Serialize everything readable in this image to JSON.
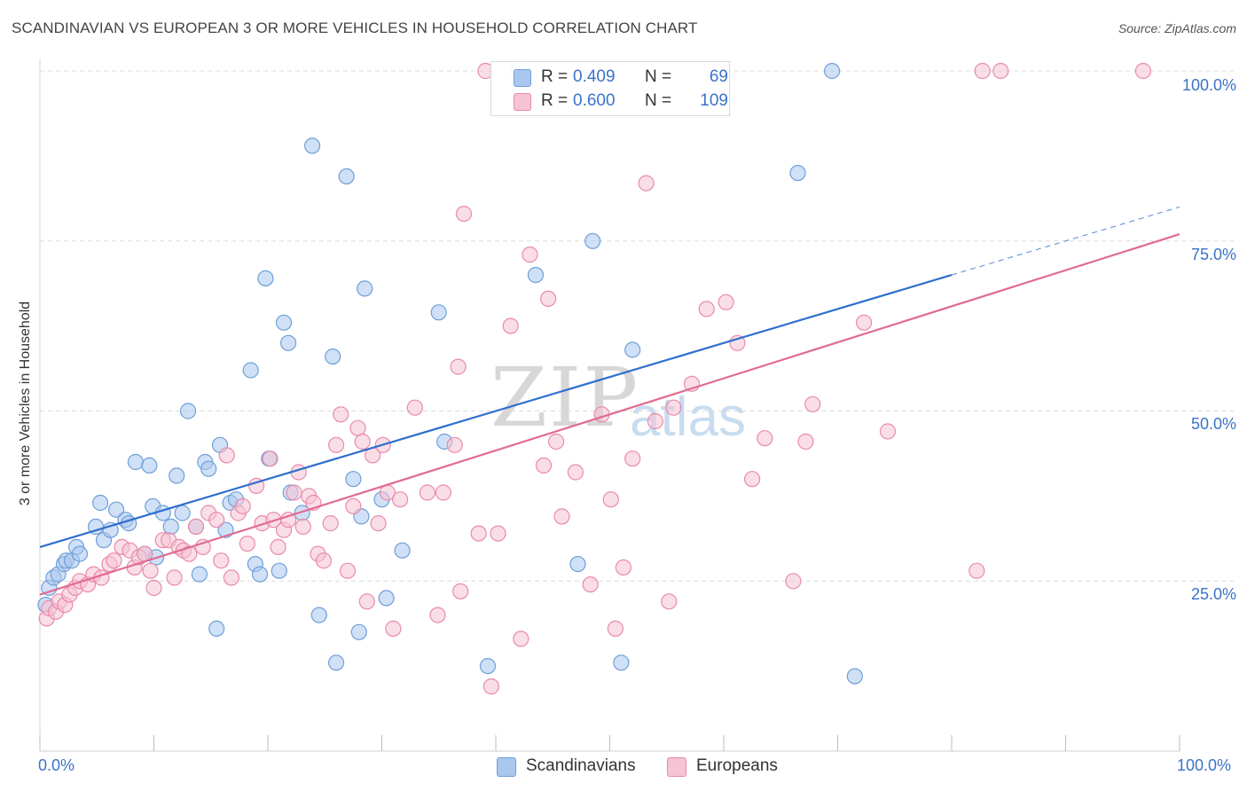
{
  "header": {
    "title": "SCANDINAVIAN VS EUROPEAN 3 OR MORE VEHICLES IN HOUSEHOLD CORRELATION CHART",
    "source": "Source: ZipAtlas.com"
  },
  "watermark": {
    "zip": "ZIP",
    "atlas": "atlas"
  },
  "legend_top": {
    "rows": [
      {
        "r_label": "R =",
        "r_value": "0.409",
        "n_label": "N =",
        "n_value": "69",
        "color": "#a9c6ee"
      },
      {
        "r_label": "R =",
        "r_value": "0.600",
        "n_label": "N =",
        "n_value": "109",
        "color": "#f6b6cb"
      }
    ]
  },
  "colors": {
    "blue_fill": "#a9c6ee",
    "blue_stroke": "#6f9fd8",
    "blue_line": "#2f6fcf",
    "pink_fill": "#f6c3d3",
    "pink_stroke": "#e98aaa",
    "pink_line": "#e06b93",
    "grid": "#dcdcdc",
    "axis_text": "#3a73c8"
  },
  "chart_data": {
    "type": "scatter",
    "title": "SCANDINAVIAN VS EUROPEAN 3 OR MORE VEHICLES IN HOUSEHOLD CORRELATION CHART",
    "xlabel": "",
    "ylabel": "3 or more Vehicles in Household",
    "xlim": [
      0,
      100
    ],
    "ylim": [
      0,
      100
    ],
    "x_tick_labels": [
      "0.0%",
      "100.0%"
    ],
    "y_tick_labels": [
      "25.0%",
      "50.0%",
      "75.0%",
      "100.0%"
    ],
    "y_ticks": [
      25,
      50,
      75,
      100
    ],
    "grid": true,
    "legend_position": "bottom",
    "series": [
      {
        "name": "Scandinavians",
        "color": "#a9c6ee",
        "points": [
          [
            0.5,
            21.5
          ],
          [
            0.8,
            24
          ],
          [
            1.2,
            25.5
          ],
          [
            1.6,
            26
          ],
          [
            2.1,
            27.5
          ],
          [
            2.3,
            28
          ],
          [
            2.8,
            28
          ],
          [
            3.2,
            30
          ],
          [
            3.5,
            29
          ],
          [
            4.9,
            33
          ],
          [
            5.3,
            36.5
          ],
          [
            5.6,
            31
          ],
          [
            6.2,
            32.5
          ],
          [
            6.7,
            35.5
          ],
          [
            7.5,
            34
          ],
          [
            7.8,
            33.5
          ],
          [
            8.4,
            42.5
          ],
          [
            9.2,
            29
          ],
          [
            9.6,
            42
          ],
          [
            9.9,
            36
          ],
          [
            10.2,
            28.5
          ],
          [
            10.8,
            35
          ],
          [
            11.5,
            33
          ],
          [
            12,
            40.5
          ],
          [
            12.5,
            35
          ],
          [
            13,
            50
          ],
          [
            13.7,
            33
          ],
          [
            14,
            26
          ],
          [
            14.5,
            42.5
          ],
          [
            14.8,
            41.5
          ],
          [
            15.5,
            18
          ],
          [
            15.8,
            45
          ],
          [
            16.3,
            32.5
          ],
          [
            16.7,
            36.5
          ],
          [
            17.2,
            37
          ],
          [
            18.5,
            56
          ],
          [
            18.9,
            27.5
          ],
          [
            19.3,
            26
          ],
          [
            19.8,
            69.5
          ],
          [
            20.1,
            43
          ],
          [
            21,
            26.5
          ],
          [
            21.4,
            63
          ],
          [
            21.8,
            60
          ],
          [
            22,
            38
          ],
          [
            23,
            35
          ],
          [
            23.9,
            89
          ],
          [
            24.5,
            20
          ],
          [
            25.7,
            58
          ],
          [
            26,
            13
          ],
          [
            26.9,
            84.5
          ],
          [
            27.5,
            40
          ],
          [
            28,
            17.5
          ],
          [
            28.2,
            34.5
          ],
          [
            28.5,
            68
          ],
          [
            30,
            37
          ],
          [
            30.4,
            22.5
          ],
          [
            31.8,
            29.5
          ],
          [
            35,
            64.5
          ],
          [
            35.5,
            45.5
          ],
          [
            39.3,
            12.5
          ],
          [
            42,
            100
          ],
          [
            43.5,
            70
          ],
          [
            47.2,
            27.5
          ],
          [
            48.5,
            75
          ],
          [
            51,
            13
          ],
          [
            52,
            59
          ],
          [
            66.5,
            85
          ],
          [
            69.5,
            100
          ],
          [
            71.5,
            11
          ]
        ]
      },
      {
        "name": "Europeans",
        "color": "#f6b6cb",
        "points": [
          [
            0.6,
            19.5
          ],
          [
            0.8,
            21
          ],
          [
            1.4,
            20.5
          ],
          [
            1.7,
            22
          ],
          [
            2.2,
            21.5
          ],
          [
            2.6,
            23
          ],
          [
            3.1,
            24
          ],
          [
            3.5,
            25
          ],
          [
            4.2,
            24.5
          ],
          [
            4.7,
            26
          ],
          [
            5.4,
            25.5
          ],
          [
            6.1,
            27.5
          ],
          [
            6.5,
            28
          ],
          [
            7.2,
            30
          ],
          [
            7.9,
            29.5
          ],
          [
            8.3,
            27
          ],
          [
            8.7,
            28.5
          ],
          [
            9.2,
            29
          ],
          [
            9.7,
            26.5
          ],
          [
            10,
            24
          ],
          [
            10.8,
            31
          ],
          [
            11.3,
            31
          ],
          [
            11.8,
            25.5
          ],
          [
            12.2,
            30
          ],
          [
            12.6,
            29.5
          ],
          [
            13.1,
            29
          ],
          [
            13.7,
            33
          ],
          [
            14.3,
            30
          ],
          [
            14.8,
            35
          ],
          [
            15.5,
            34
          ],
          [
            15.9,
            28
          ],
          [
            16.4,
            43.5
          ],
          [
            16.8,
            25.5
          ],
          [
            17.4,
            35
          ],
          [
            17.8,
            36
          ],
          [
            18.2,
            30.5
          ],
          [
            19,
            39
          ],
          [
            19.5,
            33.5
          ],
          [
            20.2,
            43
          ],
          [
            20.5,
            34
          ],
          [
            20.9,
            30
          ],
          [
            21.4,
            32.5
          ],
          [
            21.8,
            34
          ],
          [
            22.3,
            38
          ],
          [
            22.7,
            41
          ],
          [
            23.1,
            33
          ],
          [
            23.6,
            37.5
          ],
          [
            24,
            36.5
          ],
          [
            24.4,
            29
          ],
          [
            24.9,
            28
          ],
          [
            25.5,
            33.5
          ],
          [
            26,
            45
          ],
          [
            26.4,
            49.5
          ],
          [
            27,
            26.5
          ],
          [
            27.5,
            36
          ],
          [
            27.9,
            47.5
          ],
          [
            28.3,
            45.5
          ],
          [
            28.7,
            22
          ],
          [
            29.2,
            43.5
          ],
          [
            29.7,
            33.5
          ],
          [
            30.1,
            45
          ],
          [
            30.5,
            38
          ],
          [
            31,
            18
          ],
          [
            31.6,
            37
          ],
          [
            32.9,
            50.5
          ],
          [
            34,
            38
          ],
          [
            34.9,
            20
          ],
          [
            35.4,
            38
          ],
          [
            36.4,
            45
          ],
          [
            36.7,
            56.5
          ],
          [
            36.9,
            23.5
          ],
          [
            37.2,
            79
          ],
          [
            38.5,
            32
          ],
          [
            39.1,
            100
          ],
          [
            39.6,
            9.5
          ],
          [
            40.2,
            32
          ],
          [
            41.3,
            62.5
          ],
          [
            42.2,
            16.5
          ],
          [
            43,
            73
          ],
          [
            44.2,
            42
          ],
          [
            44.6,
            66.5
          ],
          [
            45.3,
            45.5
          ],
          [
            45.8,
            34.5
          ],
          [
            47,
            41
          ],
          [
            48.3,
            24.5
          ],
          [
            49.3,
            49.5
          ],
          [
            50.1,
            37
          ],
          [
            50.5,
            18
          ],
          [
            51.2,
            27
          ],
          [
            52,
            43
          ],
          [
            53.2,
            83.5
          ],
          [
            54,
            48.5
          ],
          [
            55.2,
            22
          ],
          [
            55.6,
            50.5
          ],
          [
            57.2,
            54
          ],
          [
            58.5,
            65
          ],
          [
            60.2,
            66
          ],
          [
            61.2,
            60
          ],
          [
            62.5,
            40
          ],
          [
            63.6,
            46
          ],
          [
            66.1,
            25
          ],
          [
            67.2,
            45.5
          ],
          [
            67.8,
            51
          ],
          [
            72.3,
            63
          ],
          [
            74.4,
            47
          ],
          [
            82.2,
            26.5
          ],
          [
            82.7,
            100
          ],
          [
            84.3,
            100
          ],
          [
            96.8,
            100
          ]
        ]
      }
    ],
    "trend_lines": [
      {
        "series": "Scandinavians",
        "x_start": 0,
        "y_start": 30,
        "x_end": 80,
        "y_end": 70,
        "dashed_to_x": 100,
        "dashed_to_y": 80
      },
      {
        "series": "Europeans",
        "x_start": 0,
        "y_start": 23,
        "x_end": 100,
        "y_end": 76
      }
    ]
  },
  "legend_bottom": {
    "items": [
      {
        "label": "Scandinavians",
        "color": "#a9c6ee"
      },
      {
        "label": "Europeans",
        "color": "#f6b6cb"
      }
    ]
  }
}
